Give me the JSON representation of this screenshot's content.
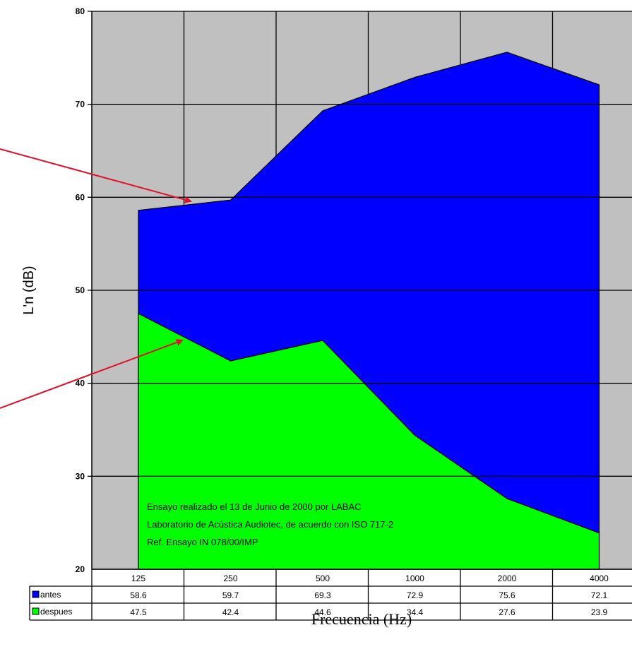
{
  "chart_data": {
    "type": "area",
    "categories": [
      "125",
      "250",
      "500",
      "1000",
      "2000",
      "4000"
    ],
    "series": [
      {
        "name": "antes",
        "values": [
          58.6,
          59.7,
          69.3,
          72.9,
          75.6,
          72.1
        ],
        "color": "#0000ff"
      },
      {
        "name": "despues",
        "values": [
          47.5,
          42.4,
          44.6,
          34.4,
          27.6,
          23.9
        ],
        "color": "#00ff00"
      }
    ],
    "ylabel": "L'n (dB)",
    "xlabel": "Frecuencia (Hz)",
    "ylim": [
      20,
      80
    ],
    "yticks": [
      "20",
      "30",
      "40",
      "50",
      "60",
      "70",
      "80"
    ],
    "grid": true,
    "plot_background": "#c0c0c0",
    "data_table": true,
    "annotations": [
      "Ensayo realizado el 13 de Junio de 2000 por LABAC",
      "Laboratorio de Acústica Audiotec, de acuerdo con ISO 717-2",
      "Ref. Ensayo IN 078/00/IMP"
    ],
    "arrow_color": "#e0102a"
  }
}
